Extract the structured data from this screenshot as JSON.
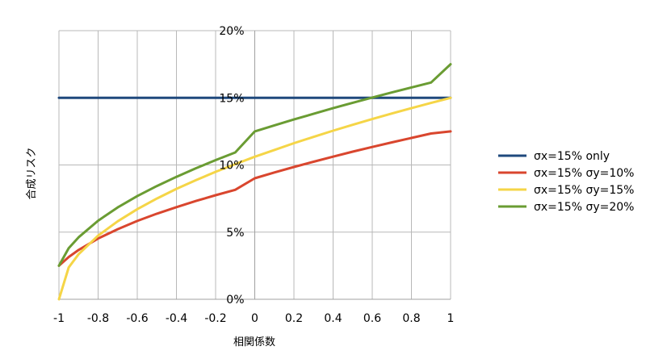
{
  "chart_data": {
    "type": "line",
    "title": "",
    "xlabel": "相関係数",
    "ylabel": "合成リスク",
    "xlim": [
      -1,
      1
    ],
    "ylim": [
      0,
      0.2
    ],
    "x_tick_labels": [
      "-1",
      "-0.8",
      "-0.6",
      "-0.4",
      "-0.2",
      "0",
      "0.2",
      "0.4",
      "0.6",
      "0.8",
      "1"
    ],
    "y_tick_labels": [
      "0%",
      "5%",
      "10%",
      "15%",
      "20%"
    ],
    "grid": true,
    "legend_position": "right",
    "x": [
      -1,
      -0.95,
      -0.9,
      -0.8,
      -0.7,
      -0.6,
      -0.5,
      -0.4,
      -0.3,
      -0.2,
      -0.1,
      0,
      0.1,
      0.2,
      0.3,
      0.4,
      0.5,
      0.6,
      0.7,
      0.8,
      0.9,
      1
    ],
    "series": [
      {
        "name": "σx=15% only",
        "color": "#1f497d",
        "values": [
          0.15,
          0.15,
          0.15,
          0.15,
          0.15,
          0.15,
          0.15,
          0.15,
          0.15,
          0.15,
          0.15,
          0.15,
          0.15,
          0.15,
          0.15,
          0.15,
          0.15,
          0.15,
          0.15,
          0.15,
          0.15,
          0.15
        ]
      },
      {
        "name": "σx=15% σy=10%",
        "color": "#d9462e",
        "values": [
          0.025,
          0.0315,
          0.0367,
          0.0452,
          0.0522,
          0.0583,
          0.0637,
          0.0686,
          0.0732,
          0.0775,
          0.0815,
          0.0901,
          0.0944,
          0.0985,
          0.1024,
          0.1062,
          0.1099,
          0.1134,
          0.1168,
          0.1201,
          0.1234,
          0.125
        ]
      },
      {
        "name": "σx=15% σy=15%",
        "color": "#f5d547",
        "values": [
          0.0,
          0.0237,
          0.0335,
          0.0474,
          0.0581,
          0.0671,
          0.075,
          0.0822,
          0.0887,
          0.0949,
          0.1006,
          0.1061,
          0.1112,
          0.1162,
          0.1209,
          0.1255,
          0.1299,
          0.1342,
          0.1383,
          0.1423,
          0.1462,
          0.15
        ]
      },
      {
        "name": "σx=15% σy=20%",
        "color": "#6a9c33",
        "values": [
          0.025,
          0.0381,
          0.0461,
          0.0585,
          0.0684,
          0.0768,
          0.0843,
          0.0912,
          0.0976,
          0.1036,
          0.1093,
          0.125,
          0.1295,
          0.1339,
          0.1381,
          0.1423,
          0.1463,
          0.1502,
          0.154,
          0.1577,
          0.1614,
          0.175
        ]
      }
    ]
  }
}
